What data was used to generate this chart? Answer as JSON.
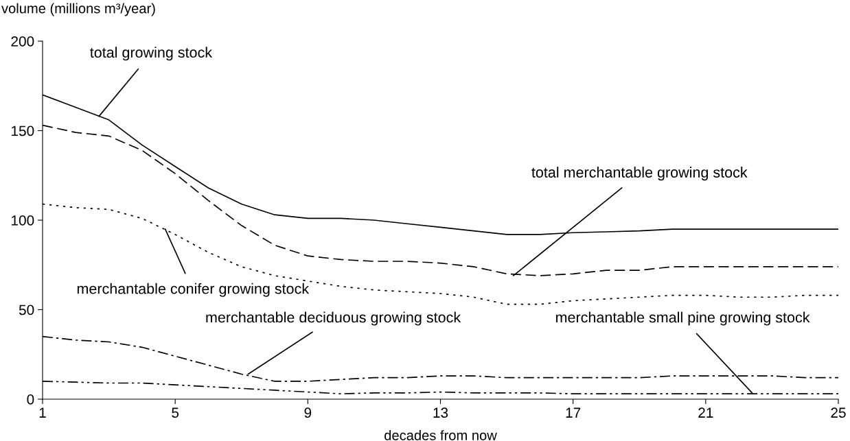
{
  "chart_data": {
    "type": "line",
    "ylabel": "volume (millions m³/year)",
    "xlabel": "decades from now",
    "x": [
      1,
      2,
      3,
      4,
      5,
      6,
      7,
      8,
      9,
      10,
      11,
      12,
      13,
      14,
      15,
      16,
      17,
      18,
      19,
      20,
      21,
      22,
      23,
      24,
      25
    ],
    "xlim": [
      1,
      25
    ],
    "xticks": [
      1,
      5,
      9,
      13,
      17,
      21,
      25
    ],
    "ylim": [
      0,
      200
    ],
    "yticks": [
      0,
      50,
      100,
      150,
      200
    ],
    "grid": false,
    "legend": false,
    "marker": "none",
    "series": [
      {
        "color": "#000000",
        "line_style": "solid",
        "values": [
          170,
          163,
          156,
          142,
          130,
          118,
          109,
          103,
          101,
          101,
          100,
          98,
          96,
          94,
          92,
          92,
          93,
          93.5,
          94,
          95,
          95,
          95,
          95,
          95,
          95
        ]
      },
      {
        "color": "#000000",
        "line_style": "dashed",
        "values": [
          153,
          149,
          147,
          139,
          126,
          111,
          97,
          86,
          80,
          78,
          77,
          77,
          76,
          74,
          70,
          69,
          70,
          72,
          72,
          74,
          74,
          74,
          74,
          74,
          74
        ]
      },
      {
        "color": "#000000",
        "line_style": "dotted",
        "values": [
          109,
          107,
          106,
          101,
          92,
          82,
          74,
          69,
          66,
          63,
          61,
          60,
          59,
          57,
          53,
          53,
          55,
          56,
          57,
          58,
          58,
          57,
          57,
          58,
          58
        ]
      },
      {
        "color": "#000000",
        "line_style": "dashdot",
        "values": [
          35,
          33,
          32,
          29,
          24,
          19,
          14,
          10,
          10,
          11,
          12,
          12,
          13,
          13,
          12,
          12,
          12,
          12,
          12,
          13,
          13,
          13,
          13,
          12,
          12
        ]
      },
      {
        "color": "#000000",
        "line_style": "dashdotdot",
        "values": [
          10,
          9.5,
          9,
          9,
          8,
          7,
          6,
          5,
          4,
          3,
          3.5,
          3.5,
          4,
          3.5,
          3.5,
          3.5,
          3,
          3,
          3,
          3,
          3,
          3,
          3,
          3,
          3
        ]
      }
    ],
    "annotations": [
      {
        "text": "total growing stock",
        "x": 2.7,
        "y": 158
      },
      {
        "text": "total merchantable growing stock",
        "x": 15.2,
        "y": 69
      },
      {
        "text": "merchantable conifer growing stock",
        "x": 4.7,
        "y": 95
      },
      {
        "text": "merchantable deciduous growing stock",
        "x": 7.2,
        "y": 14
      },
      {
        "text": "merchantable small pine growing stock",
        "x": 22.4,
        "y": 3.5
      }
    ]
  }
}
